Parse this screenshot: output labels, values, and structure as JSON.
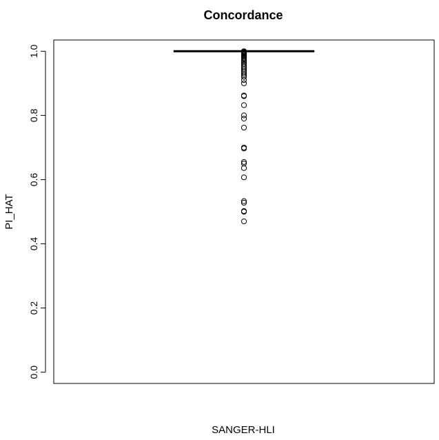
{
  "chart_data": {
    "type": "boxplot",
    "title": "Concordance",
    "xlabel": "SANGER-HLI",
    "ylabel": "PI_HAT",
    "ylim": [
      -0.035,
      1.035
    ],
    "yticks": [
      0.0,
      0.2,
      0.4,
      0.6,
      0.8,
      1.0
    ],
    "ytick_labels": [
      "0.0",
      "0.2",
      "0.4",
      "0.6",
      "0.8",
      "1.0"
    ],
    "grid": false,
    "box": {
      "min": 1.0,
      "q1": 1.0,
      "median": 1.0,
      "q3": 1.0,
      "max": 1.0
    },
    "outliers": [
      1.0,
      0.999,
      0.997,
      0.995,
      0.993,
      0.99,
      0.987,
      0.984,
      0.98,
      0.977,
      0.973,
      0.969,
      0.965,
      0.96,
      0.955,
      0.95,
      0.945,
      0.94,
      0.935,
      0.93,
      0.925,
      0.92,
      0.91,
      0.9,
      0.862,
      0.86,
      0.832,
      0.8,
      0.79,
      0.762,
      0.7,
      0.697,
      0.655,
      0.65,
      0.636,
      0.607,
      0.533,
      0.528,
      0.502,
      0.5,
      0.47
    ]
  }
}
